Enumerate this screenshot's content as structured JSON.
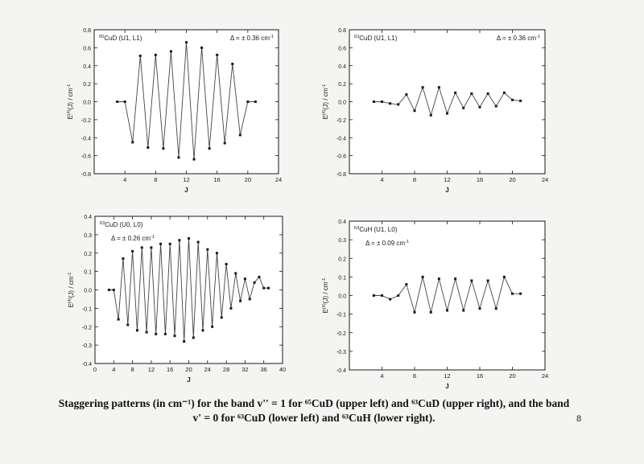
{
  "chart_data": [
    {
      "type": "line",
      "title_sup": "65",
      "title": "CuD (U1, L1)",
      "annotation": "Δ = ± 0.36 cm",
      "annotation_sup": "-1",
      "xlabel": "J",
      "ylabel": "E",
      "ylabel_sup": "(4)",
      "ylabel_rest": "(J) / cm",
      "ylabel_unit_sup": "-1",
      "xlim": [
        0,
        24
      ],
      "ylim": [
        -0.8,
        0.8
      ],
      "xticks": [
        4,
        8,
        12,
        16,
        20,
        24
      ],
      "yticks": [
        -0.8,
        -0.6,
        -0.4,
        -0.2,
        0.0,
        0.2,
        0.4,
        0.6,
        0.8
      ],
      "ytick_labels": [
        "-0.8",
        "-0.6",
        "-0.4",
        "-0.2",
        "0.0",
        "0.2",
        "0.4",
        "0.6",
        "0.8"
      ],
      "x": [
        3,
        4,
        5,
        6,
        7,
        8,
        9,
        10,
        11,
        12,
        13,
        14,
        15,
        16,
        17,
        18,
        19,
        20,
        21
      ],
      "y": [
        0.0,
        0.0,
        -0.45,
        0.51,
        -0.51,
        0.52,
        -0.52,
        0.56,
        -0.62,
        0.66,
        -0.64,
        0.6,
        -0.52,
        0.52,
        -0.46,
        0.42,
        -0.37,
        0.0,
        0.0
      ]
    },
    {
      "type": "line",
      "title_sup": "63",
      "title": "CuD (U1, L1)",
      "annotation": "Δ = ± 0.36 cm",
      "annotation_sup": "-1",
      "xlabel": "J",
      "ylabel": "E",
      "ylabel_sup": "(4)",
      "ylabel_rest": "(J) / cm",
      "ylabel_unit_sup": "-1",
      "xlim": [
        0,
        24
      ],
      "ylim": [
        -0.8,
        0.8
      ],
      "xticks": [
        4,
        8,
        12,
        16,
        20,
        24
      ],
      "yticks": [
        -0.8,
        -0.6,
        -0.4,
        -0.2,
        0.0,
        0.2,
        0.4,
        0.6,
        0.8
      ],
      "ytick_labels": [
        "-0.8",
        "-0.6",
        "-0.4",
        "-0.2",
        "0.0",
        "0.2",
        "0.4",
        "0.6",
        "0.8"
      ],
      "x": [
        3,
        4,
        5,
        6,
        7,
        8,
        9,
        10,
        11,
        12,
        13,
        14,
        15,
        16,
        17,
        18,
        19,
        20,
        21
      ],
      "y": [
        0.0,
        0.0,
        -0.02,
        -0.03,
        0.08,
        -0.1,
        0.16,
        -0.15,
        0.16,
        -0.13,
        0.1,
        -0.07,
        0.09,
        -0.06,
        0.09,
        -0.05,
        0.1,
        0.02,
        0.01
      ]
    },
    {
      "type": "line",
      "title_sup": "63",
      "title": "CuD (U0, L0)",
      "annotation": "Δ = ± 0.26 cm",
      "annotation_sup": "-1",
      "xlabel": "J",
      "ylabel": "E",
      "ylabel_sup": "(4)",
      "ylabel_rest": "(J) / cm",
      "ylabel_unit_sup": "-1",
      "xlim": [
        0,
        40
      ],
      "ylim": [
        -0.4,
        0.4
      ],
      "xticks": [
        0,
        4,
        8,
        12,
        16,
        20,
        24,
        28,
        32,
        36,
        40
      ],
      "yticks": [
        -0.4,
        -0.3,
        -0.2,
        -0.1,
        0.0,
        0.1,
        0.2,
        0.3,
        0.4
      ],
      "ytick_labels": [
        "-0.4",
        "-0.3",
        "-0.2",
        "-0.1",
        "0.0",
        "0.1",
        "0.2",
        "0.3",
        "0.4"
      ],
      "x": [
        3,
        4,
        5,
        6,
        7,
        8,
        9,
        10,
        11,
        12,
        13,
        14,
        15,
        16,
        17,
        18,
        19,
        20,
        21,
        22,
        23,
        24,
        25,
        26,
        27,
        28,
        29,
        30,
        31,
        32,
        33,
        34,
        35,
        36,
        37
      ],
      "y": [
        0.0,
        0.0,
        -0.16,
        0.17,
        -0.19,
        0.21,
        -0.22,
        0.23,
        -0.23,
        0.23,
        -0.24,
        0.25,
        -0.24,
        0.25,
        -0.25,
        0.27,
        -0.28,
        0.28,
        -0.26,
        0.26,
        -0.22,
        0.22,
        -0.2,
        0.2,
        -0.15,
        0.14,
        -0.1,
        0.09,
        -0.06,
        0.06,
        -0.05,
        0.04,
        0.07,
        0.01,
        0.01
      ]
    },
    {
      "type": "line",
      "title_sup": "63",
      "title": "CuH (U1, L0)",
      "annotation": "Δ = ± 0.09 cm",
      "annotation_sup": "-1",
      "xlabel": "J",
      "ylabel": "E",
      "ylabel_sup": "(4)",
      "ylabel_rest": "(J) / cm",
      "ylabel_unit_sup": "-1",
      "xlim": [
        0,
        24
      ],
      "ylim": [
        -0.4,
        0.4
      ],
      "xticks": [
        4,
        8,
        12,
        16,
        20,
        24
      ],
      "yticks": [
        -0.4,
        -0.3,
        -0.2,
        -0.1,
        0.0,
        0.1,
        0.2,
        0.3,
        0.4
      ],
      "ytick_labels": [
        "-0.4",
        "-0.3",
        "-0.2",
        "-0.1",
        "0.0",
        "0.1",
        "0.2",
        "0.3",
        "0.4"
      ],
      "x": [
        3,
        4,
        5,
        6,
        7,
        8,
        9,
        10,
        11,
        12,
        13,
        14,
        15,
        16,
        17,
        18,
        19,
        20,
        21
      ],
      "y": [
        0.0,
        0.0,
        -0.02,
        0.0,
        0.06,
        -0.09,
        0.1,
        -0.09,
        0.09,
        -0.08,
        0.09,
        -0.08,
        0.08,
        -0.07,
        0.08,
        -0.07,
        0.1,
        0.01,
        0.01
      ]
    }
  ],
  "caption": {
    "line1": "Staggering patterns (in cm⁻¹) for the band v'' = 1 for ⁶⁵CuD (upper left) and ⁶³CuD (upper right), and the band",
    "line2": "v' = 0 for ⁶³CuD (lower left) and ⁶³CuH (lower right)."
  },
  "page_number": "8",
  "colors": {
    "ink": "#1a1a1a",
    "line": "#444444",
    "paper": "#f4f4f2",
    "panel": "#ffffff"
  }
}
